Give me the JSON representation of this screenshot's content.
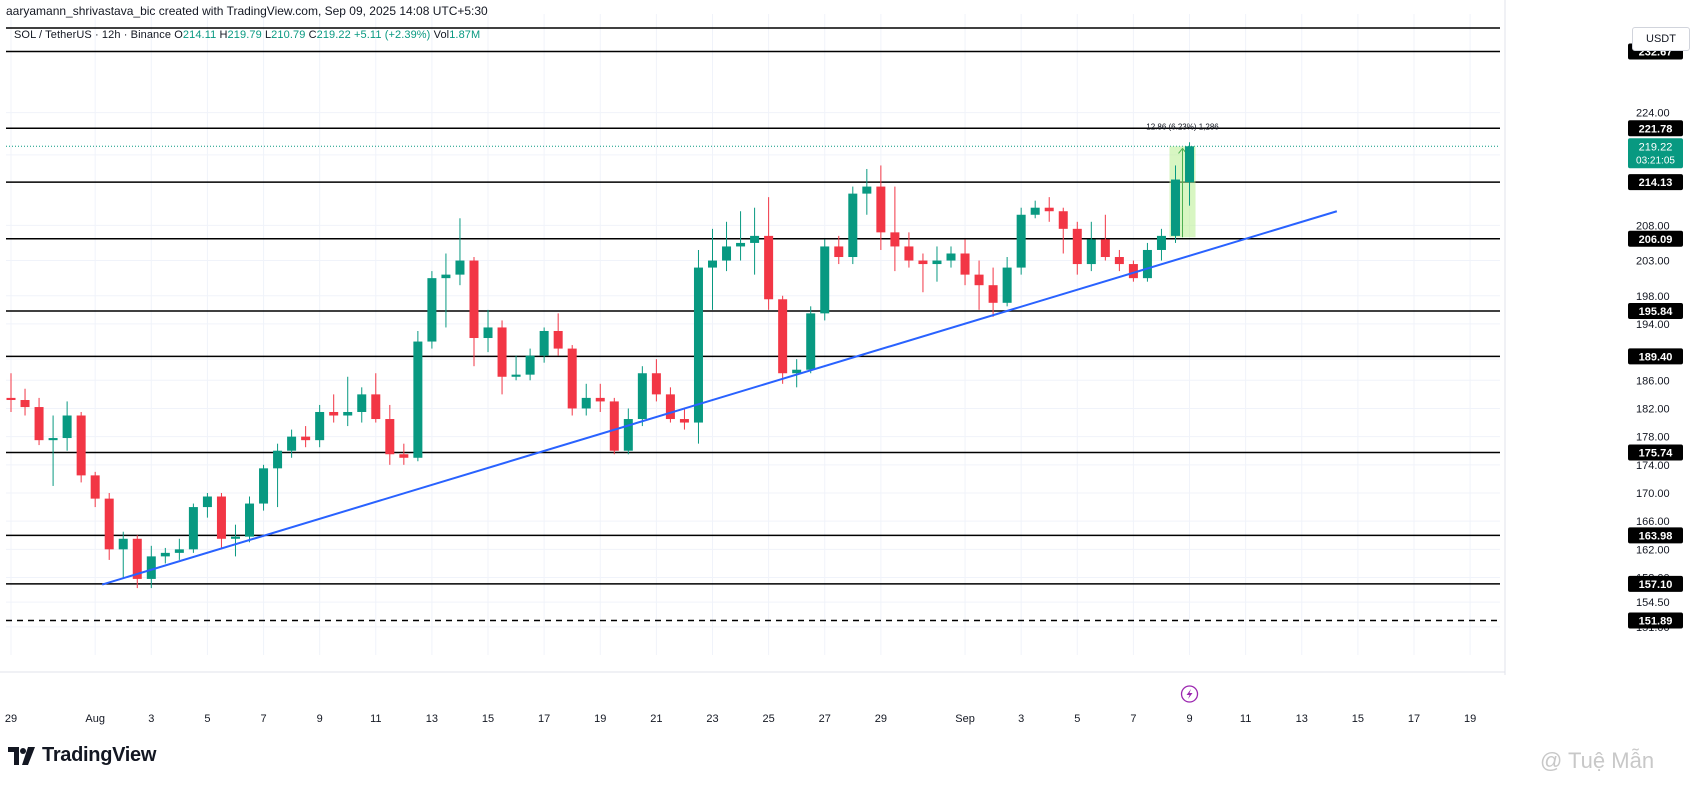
{
  "header": {
    "credit": "aaryamann_shrivastava_bic created with TradingView.com, Sep 09, 2025 14:08 UTC+5:30",
    "symbol": "SOL / TetherUS · 12h · Binance",
    "o_label": "O",
    "o_value": "214.11",
    "h_label": "H",
    "h_value": "219.79",
    "l_label": "L",
    "l_value": "210.79",
    "c_label": "C",
    "c_value": "219.22",
    "change": "+5.11 (+2.39%)",
    "vol_label": "Vol",
    "vol_value": "1.87M"
  },
  "unit": "USDT",
  "footer": {
    "logo_text": "TradingView",
    "watermark": "@ Tuệ Mẫn"
  },
  "colors": {
    "up": "#089981",
    "down": "#f23645",
    "trendline": "#2962ff",
    "level": "#000000",
    "measure_fill": "#b8ef8f",
    "measure_line": "#4caf50",
    "price_tag": "#089981"
  },
  "chart_data": {
    "type": "candlestick",
    "timeframe": "12h",
    "y_range": [
      147,
      238
    ],
    "y_ticks": [
      "224.00",
      "218.00",
      "208.00",
      "203.00",
      "198.00",
      "194.00",
      "189.00",
      "186.00",
      "182.00",
      "178.00",
      "174.00",
      "170.00",
      "166.00",
      "162.00",
      "158.00",
      "154.50",
      "151.00"
    ],
    "x_ticks": [
      "29",
      "Aug",
      "3",
      "5",
      "7",
      "9",
      "11",
      "13",
      "15",
      "17",
      "19",
      "21",
      "23",
      "25",
      "27",
      "29",
      "Sep",
      "3",
      "5",
      "7",
      "9",
      "11",
      "13",
      "15",
      "17",
      "19"
    ],
    "candles": [
      {
        "t": "Jul 29 am",
        "o": 183.5,
        "h": 187.0,
        "l": 181.5,
        "c": 183.2
      },
      {
        "t": "Jul 29 pm",
        "o": 183.2,
        "h": 184.8,
        "l": 181.0,
        "c": 182.2
      },
      {
        "t": "Jul 30 am",
        "o": 182.2,
        "h": 183.5,
        "l": 176.8,
        "c": 177.5
      },
      {
        "t": "Jul 30 pm",
        "o": 177.5,
        "h": 181.0,
        "l": 171.0,
        "c": 177.8
      },
      {
        "t": "Jul 31 am",
        "o": 177.8,
        "h": 183.0,
        "l": 176.0,
        "c": 181.0
      },
      {
        "t": "Jul 31 pm",
        "o": 181.0,
        "h": 181.5,
        "l": 171.5,
        "c": 172.5
      },
      {
        "t": "Aug 1 am",
        "o": 172.5,
        "h": 173.0,
        "l": 168.0,
        "c": 169.2
      },
      {
        "t": "Aug 1 pm",
        "o": 169.2,
        "h": 170.0,
        "l": 160.5,
        "c": 162.0
      },
      {
        "t": "Aug 2 am",
        "o": 162.0,
        "h": 164.5,
        "l": 158.0,
        "c": 163.5
      },
      {
        "t": "Aug 2 pm",
        "o": 163.5,
        "h": 164.0,
        "l": 156.5,
        "c": 157.8
      },
      {
        "t": "Aug 3 am",
        "o": 157.8,
        "h": 162.5,
        "l": 156.5,
        "c": 161.0
      },
      {
        "t": "Aug 3 pm",
        "o": 161.0,
        "h": 162.2,
        "l": 160.0,
        "c": 161.5
      },
      {
        "t": "Aug 4 am",
        "o": 161.5,
        "h": 163.5,
        "l": 160.5,
        "c": 162.0
      },
      {
        "t": "Aug 4 pm",
        "o": 162.0,
        "h": 168.5,
        "l": 161.5,
        "c": 168.0
      },
      {
        "t": "Aug 5 am",
        "o": 168.0,
        "h": 170.0,
        "l": 166.5,
        "c": 169.5
      },
      {
        "t": "Aug 5 pm",
        "o": 169.5,
        "h": 170.0,
        "l": 162.0,
        "c": 163.5
      },
      {
        "t": "Aug 6 am",
        "o": 163.5,
        "h": 165.5,
        "l": 161.0,
        "c": 163.8
      },
      {
        "t": "Aug 6 pm",
        "o": 163.8,
        "h": 169.5,
        "l": 163.0,
        "c": 168.5
      },
      {
        "t": "Aug 7 am",
        "o": 168.5,
        "h": 174.0,
        "l": 167.5,
        "c": 173.5
      },
      {
        "t": "Aug 7 pm",
        "o": 173.5,
        "h": 177.0,
        "l": 168.0,
        "c": 176.0
      },
      {
        "t": "Aug 8 am",
        "o": 176.0,
        "h": 179.0,
        "l": 175.0,
        "c": 178.0
      },
      {
        "t": "Aug 8 pm",
        "o": 178.0,
        "h": 179.5,
        "l": 176.5,
        "c": 177.5
      },
      {
        "t": "Aug 9 am",
        "o": 177.5,
        "h": 182.5,
        "l": 176.5,
        "c": 181.5
      },
      {
        "t": "Aug 9 pm",
        "o": 181.5,
        "h": 184.0,
        "l": 180.0,
        "c": 181.0
      },
      {
        "t": "Aug 10 am",
        "o": 181.0,
        "h": 186.5,
        "l": 179.5,
        "c": 181.5
      },
      {
        "t": "Aug 10 pm",
        "o": 181.5,
        "h": 185.0,
        "l": 180.0,
        "c": 184.0
      },
      {
        "t": "Aug 11 am",
        "o": 184.0,
        "h": 187.0,
        "l": 180.0,
        "c": 180.5
      },
      {
        "t": "Aug 11 pm",
        "o": 180.5,
        "h": 182.5,
        "l": 174.0,
        "c": 175.5
      },
      {
        "t": "Aug 12 am",
        "o": 175.5,
        "h": 177.0,
        "l": 174.0,
        "c": 175.0
      },
      {
        "t": "Aug 12 pm",
        "o": 175.0,
        "h": 193.0,
        "l": 174.5,
        "c": 191.5
      },
      {
        "t": "Aug 13 am",
        "o": 191.5,
        "h": 201.5,
        "l": 190.5,
        "c": 200.5
      },
      {
        "t": "Aug 13 pm",
        "o": 200.5,
        "h": 204.0,
        "l": 193.5,
        "c": 201.0
      },
      {
        "t": "Aug 14 am",
        "o": 201.0,
        "h": 209.0,
        "l": 199.5,
        "c": 203.0
      },
      {
        "t": "Aug 14 pm",
        "o": 203.0,
        "h": 203.5,
        "l": 188.0,
        "c": 192.0
      },
      {
        "t": "Aug 15 am",
        "o": 192.0,
        "h": 196.0,
        "l": 190.0,
        "c": 193.5
      },
      {
        "t": "Aug 15 pm",
        "o": 193.5,
        "h": 194.5,
        "l": 184.0,
        "c": 186.5
      },
      {
        "t": "Aug 16 am",
        "o": 186.5,
        "h": 189.5,
        "l": 186.0,
        "c": 186.8
      },
      {
        "t": "Aug 16 pm",
        "o": 186.8,
        "h": 190.5,
        "l": 186.0,
        "c": 189.5
      },
      {
        "t": "Aug 17 am",
        "o": 189.5,
        "h": 193.5,
        "l": 188.5,
        "c": 193.0
      },
      {
        "t": "Aug 17 pm",
        "o": 193.0,
        "h": 195.5,
        "l": 189.5,
        "c": 190.5
      },
      {
        "t": "Aug 18 am",
        "o": 190.5,
        "h": 191.0,
        "l": 181.0,
        "c": 182.0
      },
      {
        "t": "Aug 18 pm",
        "o": 182.0,
        "h": 185.5,
        "l": 181.0,
        "c": 183.5
      },
      {
        "t": "Aug 19 am",
        "o": 183.5,
        "h": 185.5,
        "l": 181.5,
        "c": 183.0
      },
      {
        "t": "Aug 19 pm",
        "o": 183.0,
        "h": 183.5,
        "l": 175.5,
        "c": 176.0
      },
      {
        "t": "Aug 20 am",
        "o": 176.0,
        "h": 182.0,
        "l": 175.5,
        "c": 180.5
      },
      {
        "t": "Aug 20 pm",
        "o": 180.5,
        "h": 188.0,
        "l": 179.5,
        "c": 187.0
      },
      {
        "t": "Aug 21 am",
        "o": 187.0,
        "h": 189.0,
        "l": 183.0,
        "c": 184.0
      },
      {
        "t": "Aug 21 pm",
        "o": 184.0,
        "h": 185.0,
        "l": 180.0,
        "c": 180.5
      },
      {
        "t": "Aug 22 am",
        "o": 180.5,
        "h": 182.0,
        "l": 179.0,
        "c": 180.0
      },
      {
        "t": "Aug 22 pm",
        "o": 180.0,
        "h": 204.5,
        "l": 177.0,
        "c": 202.0
      },
      {
        "t": "Aug 23 am",
        "o": 202.0,
        "h": 207.5,
        "l": 196.0,
        "c": 203.0
      },
      {
        "t": "Aug 23 pm",
        "o": 203.0,
        "h": 208.5,
        "l": 201.5,
        "c": 205.0
      },
      {
        "t": "Aug 24 am",
        "o": 205.0,
        "h": 210.0,
        "l": 203.0,
        "c": 205.5
      },
      {
        "t": "Aug 24 pm",
        "o": 205.5,
        "h": 210.5,
        "l": 201.0,
        "c": 206.5
      },
      {
        "t": "Aug 25 am",
        "o": 206.5,
        "h": 212.0,
        "l": 196.0,
        "c": 197.5
      },
      {
        "t": "Aug 25 pm",
        "o": 197.5,
        "h": 198.0,
        "l": 185.5,
        "c": 187.0
      },
      {
        "t": "Aug 26 am",
        "o": 187.0,
        "h": 189.0,
        "l": 185.0,
        "c": 187.5
      },
      {
        "t": "Aug 26 pm",
        "o": 187.5,
        "h": 196.5,
        "l": 187.0,
        "c": 195.5
      },
      {
        "t": "Aug 27 am",
        "o": 195.5,
        "h": 206.0,
        "l": 194.5,
        "c": 205.0
      },
      {
        "t": "Aug 27 pm",
        "o": 205.0,
        "h": 206.5,
        "l": 202.5,
        "c": 203.5
      },
      {
        "t": "Aug 28 am",
        "o": 203.5,
        "h": 213.5,
        "l": 202.5,
        "c": 212.5
      },
      {
        "t": "Aug 28 pm",
        "o": 212.5,
        "h": 216.0,
        "l": 209.5,
        "c": 213.5
      },
      {
        "t": "Aug 29 am",
        "o": 213.5,
        "h": 216.5,
        "l": 204.5,
        "c": 207.0
      },
      {
        "t": "Aug 29 pm",
        "o": 207.0,
        "h": 213.5,
        "l": 201.5,
        "c": 205.0
      },
      {
        "t": "Aug 30 am",
        "o": 205.0,
        "h": 207.0,
        "l": 202.0,
        "c": 203.0
      },
      {
        "t": "Aug 30 pm",
        "o": 203.0,
        "h": 204.0,
        "l": 198.5,
        "c": 202.5
      },
      {
        "t": "Aug 31 am",
        "o": 202.5,
        "h": 205.0,
        "l": 200.0,
        "c": 203.0
      },
      {
        "t": "Aug 31 pm",
        "o": 203.0,
        "h": 205.0,
        "l": 202.0,
        "c": 204.0
      },
      {
        "t": "Sep 1 am",
        "o": 204.0,
        "h": 206.0,
        "l": 199.5,
        "c": 201.0
      },
      {
        "t": "Sep 1 pm",
        "o": 201.0,
        "h": 203.0,
        "l": 196.0,
        "c": 199.5
      },
      {
        "t": "Sep 2 am",
        "o": 199.5,
        "h": 202.0,
        "l": 195.0,
        "c": 197.0
      },
      {
        "t": "Sep 2 pm",
        "o": 197.0,
        "h": 203.5,
        "l": 196.5,
        "c": 202.0
      },
      {
        "t": "Sep 3 am",
        "o": 202.0,
        "h": 210.5,
        "l": 201.0,
        "c": 209.5
      },
      {
        "t": "Sep 3 pm",
        "o": 209.5,
        "h": 211.5,
        "l": 209.0,
        "c": 210.5
      },
      {
        "t": "Sep 4 am",
        "o": 210.5,
        "h": 212.0,
        "l": 208.5,
        "c": 210.0
      },
      {
        "t": "Sep 4 pm",
        "o": 210.0,
        "h": 210.5,
        "l": 204.0,
        "c": 207.5
      },
      {
        "t": "Sep 5 am",
        "o": 207.5,
        "h": 208.5,
        "l": 201.0,
        "c": 202.5
      },
      {
        "t": "Sep 5 pm",
        "o": 202.5,
        "h": 208.5,
        "l": 201.5,
        "c": 206.0
      },
      {
        "t": "Sep 6 am",
        "o": 206.0,
        "h": 209.5,
        "l": 203.0,
        "c": 203.5
      },
      {
        "t": "Sep 6 pm",
        "o": 203.5,
        "h": 204.5,
        "l": 201.5,
        "c": 202.5
      },
      {
        "t": "Sep 7 am",
        "o": 202.5,
        "h": 203.0,
        "l": 200.0,
        "c": 200.5
      },
      {
        "t": "Sep 7 pm",
        "o": 200.5,
        "h": 205.5,
        "l": 200.0,
        "c": 204.5
      },
      {
        "t": "Sep 8 am",
        "o": 204.5,
        "h": 207.5,
        "l": 203.0,
        "c": 206.5
      },
      {
        "t": "Sep 8 pm",
        "o": 206.5,
        "h": 216.5,
        "l": 205.5,
        "c": 214.5
      },
      {
        "t": "Sep 9 am",
        "o": 214.11,
        "h": 219.79,
        "l": 210.79,
        "c": 219.22
      }
    ],
    "levels": [
      {
        "price": 232.67,
        "label": "232.67",
        "style": "solid"
      },
      {
        "price": 221.78,
        "label": "221.78",
        "style": "solid"
      },
      {
        "price": 214.13,
        "label": "214.13",
        "style": "solid"
      },
      {
        "price": 206.09,
        "label": "206.09",
        "style": "solid"
      },
      {
        "price": 195.84,
        "label": "195.84",
        "style": "solid"
      },
      {
        "price": 189.4,
        "label": "189.40",
        "style": "solid"
      },
      {
        "price": 175.74,
        "label": "175.74",
        "style": "solid"
      },
      {
        "price": 163.98,
        "label": "163.98",
        "style": "solid"
      },
      {
        "price": 157.1,
        "label": "157.10",
        "style": "solid"
      },
      {
        "price": 151.89,
        "label": "151.89",
        "style": "dashed"
      }
    ],
    "trendline": {
      "from": {
        "bar": 6.5,
        "price": 157.0
      },
      "to": {
        "bar": 94.5,
        "price": 210.0
      }
    },
    "measure": {
      "from_bar": 83,
      "to_bar": 84,
      "from_price": 206.3,
      "to_price": 219.2,
      "label": "12.86 (6.23%) 1,286"
    },
    "last_price": {
      "value": "219.22",
      "countdown": "03:21:05",
      "price": 219.22
    }
  }
}
